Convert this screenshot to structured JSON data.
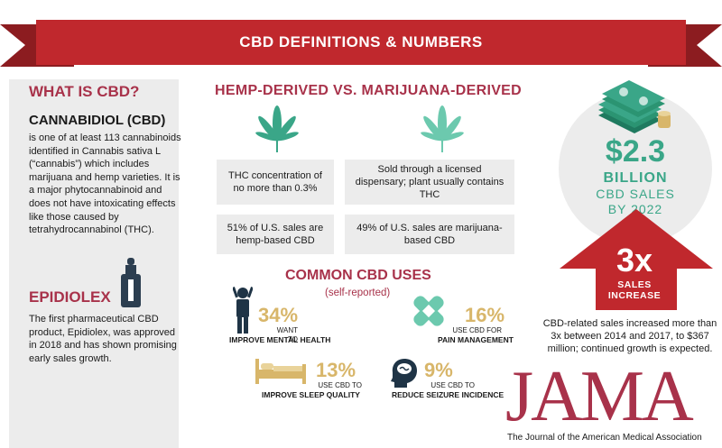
{
  "banner": {
    "title": "CBD DEFINITIONS & NUMBERS"
  },
  "what_is": {
    "title": "WHAT IS CBD?",
    "name": "CANNABIDIOL (CBD)",
    "body": "is one of at least 113 cannabinoids identified in Cannabis sativa L (“cannabis”) which includes marijuana and hemp varieties. It is a major phytocannabinoid and does not have intoxicating effects like those caused by tetrahydrocannabinol (THC)."
  },
  "epidiolex": {
    "title": "EPIDIOLEX",
    "body": "The first pharmaceutical CBD product, Epidiolex, was approved in 2018 and has shown promising early sales growth."
  },
  "hemp_vs_marijuana": {
    "title": "HEMP-DERIVED VS. MARIJUANA-DERIVED",
    "hemp_thc": "THC concentration of no more than 0.3%",
    "hemp_sales": "51% of U.S. sales are hemp-based CBD",
    "mj_dispensary": "Sold through a licensed dispensary; plant usually contains THC",
    "mj_sales": "49% of U.S. sales are marijuana-based CBD"
  },
  "uses": {
    "title": "COMMON CBD USES",
    "subtitle": "(self-reported)",
    "mental": {
      "pct": "34%",
      "small": "WANT TO",
      "big": "IMPROVE MENTAL HEALTH"
    },
    "pain": {
      "pct": "16%",
      "small": "USE CBD FOR",
      "big": "PAIN MANAGEMENT"
    },
    "sleep": {
      "pct": "13%",
      "small": "USE CBD TO",
      "big": "IMPROVE SLEEP QUALITY"
    },
    "seizure": {
      "pct": "9%",
      "small": "USE CBD TO",
      "big": "REDUCE SEIZURE INCIDENCE"
    }
  },
  "market": {
    "amount": "$2.3",
    "unit": "BILLION",
    "label1": "CBD SALES",
    "label2": "BY 2022"
  },
  "growth": {
    "multiplier": "3x",
    "label1": "SALES",
    "label2": "INCREASE",
    "text": "CBD-related sales increased more than 3x between 2014 and 2017, to $367 million; continued growth is expected."
  },
  "source": {
    "logo": "JAMA",
    "subtitle": "The Journal of the American Medical Association"
  },
  "colors": {
    "red": "#c0282d",
    "maroon": "#a8324a",
    "gold": "#d8b66a",
    "green": "#3aa688",
    "panel": "#ececec"
  },
  "icons": [
    "cannabis-leaf-icon",
    "dropper-bottle-icon",
    "stressed-person-icon",
    "bandage-icon",
    "bed-icon",
    "brain-head-icon",
    "money-stack-icon",
    "up-arrow-icon"
  ]
}
